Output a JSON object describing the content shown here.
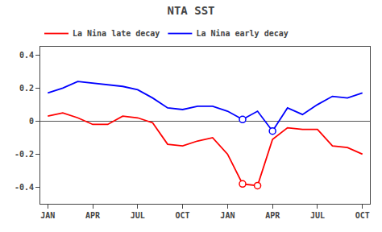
{
  "chart_data": {
    "type": "line",
    "title": "NTA SST",
    "x": [
      0,
      1,
      2,
      3,
      4,
      5,
      6,
      7,
      8,
      9,
      10,
      11,
      12,
      13,
      14,
      15,
      16,
      17,
      18,
      19,
      20,
      21
    ],
    "xlim": [
      -0.5,
      21.5
    ],
    "xticks": [
      {
        "value": 0,
        "label": "JAN"
      },
      {
        "value": 3,
        "label": "APR"
      },
      {
        "value": 6,
        "label": "JUL"
      },
      {
        "value": 9,
        "label": "OCT"
      },
      {
        "value": 12,
        "label": "JAN"
      },
      {
        "value": 15,
        "label": "APR"
      },
      {
        "value": 18,
        "label": "JUL"
      },
      {
        "value": 21,
        "label": "OCT"
      }
    ],
    "ylim": [
      -0.5,
      0.45
    ],
    "yticks": [
      -0.4,
      -0.2,
      0,
      0.2,
      0.4
    ],
    "grid": false,
    "legend": "upper left",
    "series": [
      {
        "name": "La Nina late decay",
        "color": "#ff0000",
        "type": "line",
        "values": [
          0.03,
          0.05,
          0.02,
          -0.02,
          -0.02,
          0.03,
          0.02,
          -0.01,
          -0.14,
          -0.15,
          -0.12,
          -0.1,
          -0.2,
          -0.38,
          -0.39,
          -0.11,
          -0.04,
          -0.05,
          -0.05,
          -0.15,
          -0.16,
          -0.2
        ]
      },
      {
        "name": "La Nina early decay",
        "color": "#0000ff",
        "type": "line",
        "values": [
          0.17,
          0.2,
          0.24,
          0.23,
          0.22,
          0.21,
          0.19,
          0.14,
          0.08,
          0.07,
          0.09,
          0.09,
          0.06,
          0.01,
          0.06,
          -0.06,
          0.08,
          0.04,
          0.1,
          0.15,
          0.14,
          0.17
        ]
      },
      {
        "color": "#ff0000",
        "type": "scatter",
        "marker": "open circle",
        "values": [
          null,
          null,
          null,
          null,
          null,
          null,
          null,
          null,
          null,
          null,
          null,
          null,
          null,
          -0.38,
          -0.39,
          null,
          null,
          null,
          null,
          null,
          null,
          null
        ]
      },
      {
        "color": "#0000ff",
        "type": "scatter",
        "marker": "open circle",
        "values": [
          null,
          null,
          null,
          null,
          null,
          null,
          null,
          null,
          null,
          null,
          null,
          null,
          null,
          0.01,
          null,
          -0.06,
          null,
          null,
          null,
          null,
          null,
          null
        ]
      }
    ]
  }
}
